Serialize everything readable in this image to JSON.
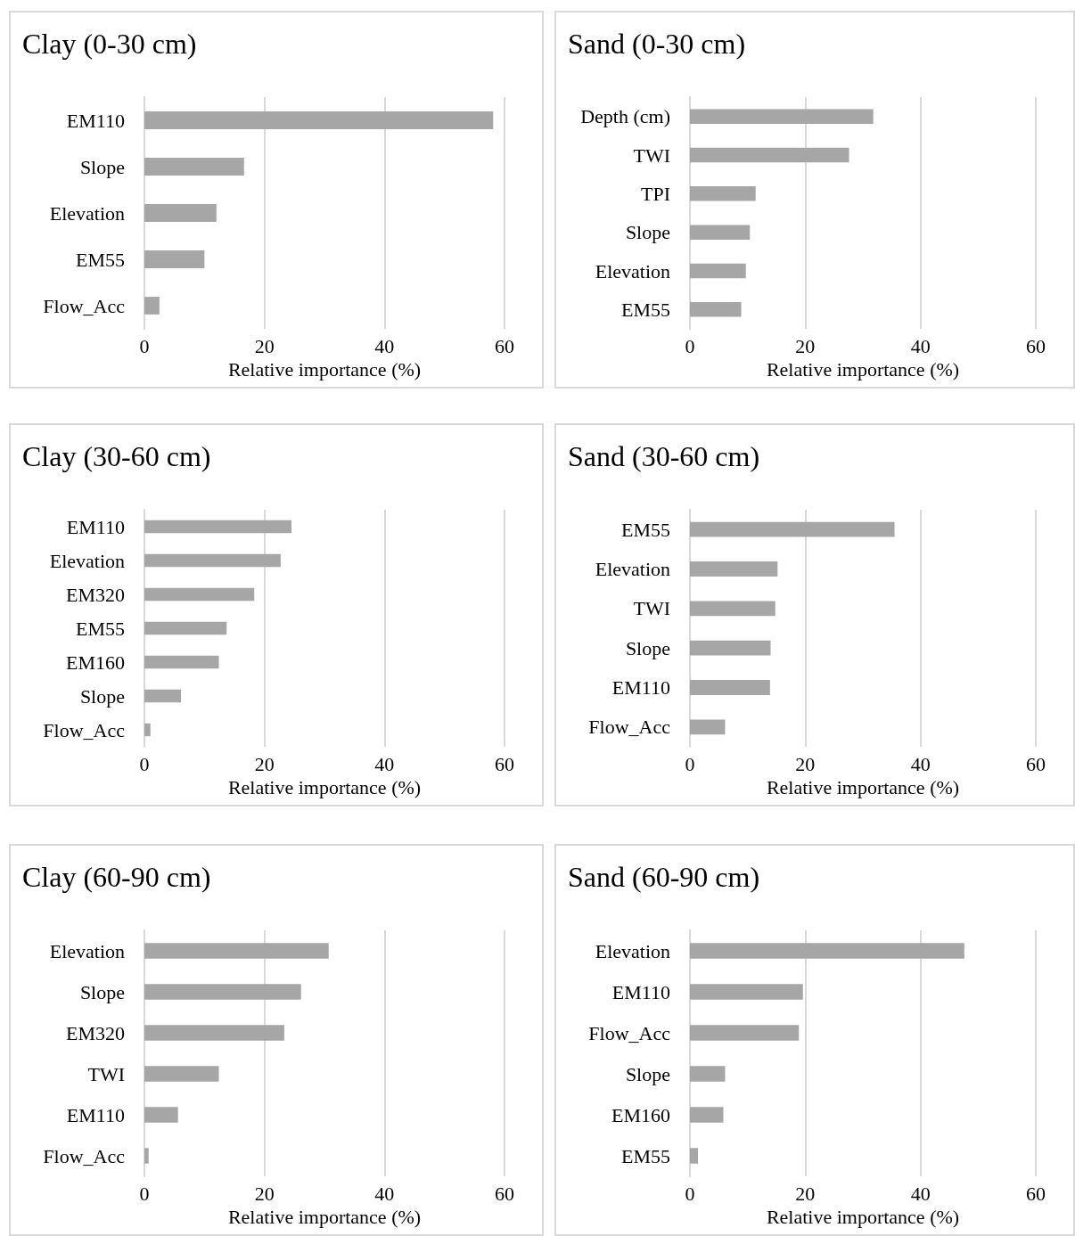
{
  "chart_data": [
    {
      "type": "bar",
      "orientation": "horizontal",
      "title": "Clay (0-30 cm)",
      "xlabel": "Relative importance (%)",
      "categories": [
        "EM110",
        "Slope",
        "Elevation",
        "EM55",
        "Flow_Acc"
      ],
      "values": [
        58.1,
        16.6,
        12.0,
        10.0,
        2.5
      ],
      "color": "#a6a6a6",
      "xlim": [
        0,
        60
      ],
      "xticks": [
        0,
        20,
        40,
        60
      ],
      "grid": "x"
    },
    {
      "type": "bar",
      "orientation": "horizontal",
      "title": "Sand (0-30 cm)",
      "xlabel": "Relative importance (%)",
      "categories": [
        "Depth (cm)",
        "TWI",
        "TPI",
        "Slope",
        "Elevation",
        "EM55"
      ],
      "values": [
        31.8,
        27.6,
        11.4,
        10.4,
        9.7,
        8.9
      ],
      "color": "#a6a6a6",
      "xlim": [
        0,
        60
      ],
      "xticks": [
        0,
        20,
        40,
        60
      ],
      "grid": "x"
    },
    {
      "type": "bar",
      "orientation": "horizontal",
      "title": "Clay (30-60 cm)",
      "xlabel": "Relative importance (%)",
      "categories": [
        "EM110",
        "Elevation",
        "EM320",
        "EM55",
        "EM160",
        "Slope",
        "Flow_Acc"
      ],
      "values": [
        24.5,
        22.7,
        18.3,
        13.7,
        12.4,
        6.1,
        1.0
      ],
      "color": "#a6a6a6",
      "xlim": [
        0,
        60
      ],
      "xticks": [
        0,
        20,
        40,
        60
      ],
      "grid": "x"
    },
    {
      "type": "bar",
      "orientation": "horizontal",
      "title": "Sand (30-60 cm)",
      "xlabel": "Relative importance (%)",
      "categories": [
        "EM55",
        "Elevation",
        "TWI",
        "Slope",
        "EM110",
        "Flow_Acc"
      ],
      "values": [
        35.5,
        15.2,
        14.8,
        14.0,
        13.9,
        6.1
      ],
      "color": "#a6a6a6",
      "xlim": [
        0,
        60
      ],
      "xticks": [
        0,
        20,
        40,
        60
      ],
      "grid": "x"
    },
    {
      "type": "bar",
      "orientation": "horizontal",
      "title": "Clay (60-90 cm)",
      "xlabel": "Relative importance (%)",
      "categories": [
        "Elevation",
        "Slope",
        "EM320",
        "TWI",
        "EM110",
        "Flow_Acc"
      ],
      "values": [
        30.7,
        26.1,
        23.3,
        12.4,
        5.6,
        0.7
      ],
      "color": "#a6a6a6",
      "xlim": [
        0,
        60
      ],
      "xticks": [
        0,
        20,
        40,
        60
      ],
      "grid": "x"
    },
    {
      "type": "bar",
      "orientation": "horizontal",
      "title": "Sand (60-90 cm)",
      "xlabel": "Relative importance (%)",
      "categories": [
        "Elevation",
        "EM110",
        "Flow_Acc",
        "Slope",
        "EM160",
        "EM55"
      ],
      "values": [
        47.6,
        19.6,
        18.9,
        6.1,
        5.8,
        1.4
      ],
      "color": "#a6a6a6",
      "xlim": [
        0,
        60
      ],
      "xticks": [
        0,
        20,
        40,
        60
      ],
      "grid": "x"
    }
  ]
}
